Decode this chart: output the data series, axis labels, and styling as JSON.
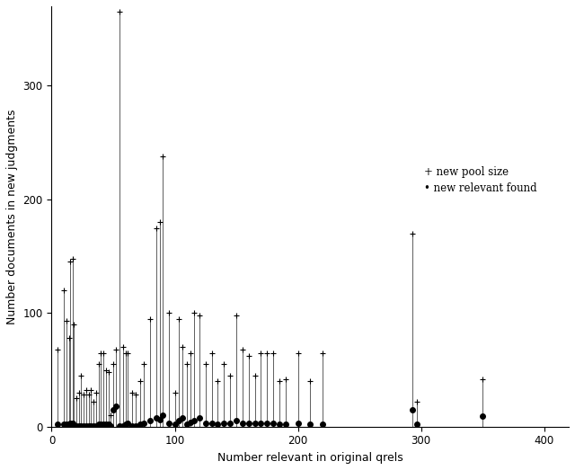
{
  "xlabel": "Number relevant in original qrels",
  "ylabel": "Number documents in new judgments",
  "xlim": [
    0,
    420
  ],
  "ylim": [
    0,
    370
  ],
  "xticks": [
    0,
    100,
    200,
    300,
    400
  ],
  "yticks": [
    0,
    100,
    200,
    300
  ],
  "background_color": "#ffffff",
  "legend_plus_label": "+ new pool size",
  "legend_dot_label": "• new relevant found",
  "points": [
    {
      "x": 5,
      "pool": 68,
      "rel": 2
    },
    {
      "x": 10,
      "pool": 120,
      "rel": 2
    },
    {
      "x": 12,
      "pool": 93,
      "rel": 2
    },
    {
      "x": 14,
      "pool": 78,
      "rel": 1
    },
    {
      "x": 15,
      "pool": 145,
      "rel": 3
    },
    {
      "x": 17,
      "pool": 148,
      "rel": 3
    },
    {
      "x": 18,
      "pool": 90,
      "rel": 1
    },
    {
      "x": 20,
      "pool": 25,
      "rel": 1
    },
    {
      "x": 22,
      "pool": 30,
      "rel": 1
    },
    {
      "x": 24,
      "pool": 45,
      "rel": 1
    },
    {
      "x": 26,
      "pool": 28,
      "rel": 1
    },
    {
      "x": 28,
      "pool": 32,
      "rel": 1
    },
    {
      "x": 30,
      "pool": 28,
      "rel": 1
    },
    {
      "x": 32,
      "pool": 32,
      "rel": 1
    },
    {
      "x": 34,
      "pool": 22,
      "rel": 1
    },
    {
      "x": 36,
      "pool": 30,
      "rel": 1
    },
    {
      "x": 38,
      "pool": 55,
      "rel": 2
    },
    {
      "x": 40,
      "pool": 65,
      "rel": 2
    },
    {
      "x": 42,
      "pool": 65,
      "rel": 2
    },
    {
      "x": 44,
      "pool": 50,
      "rel": 2
    },
    {
      "x": 46,
      "pool": 48,
      "rel": 2
    },
    {
      "x": 48,
      "pool": 10,
      "rel": 1
    },
    {
      "x": 50,
      "pool": 55,
      "rel": 15
    },
    {
      "x": 52,
      "pool": 68,
      "rel": 18
    },
    {
      "x": 55,
      "pool": 365,
      "rel": 1
    },
    {
      "x": 58,
      "pool": 70,
      "rel": 1
    },
    {
      "x": 60,
      "pool": 65,
      "rel": 2
    },
    {
      "x": 62,
      "pool": 65,
      "rel": 3
    },
    {
      "x": 65,
      "pool": 30,
      "rel": 1
    },
    {
      "x": 68,
      "pool": 28,
      "rel": 1
    },
    {
      "x": 72,
      "pool": 40,
      "rel": 2
    },
    {
      "x": 75,
      "pool": 55,
      "rel": 3
    },
    {
      "x": 80,
      "pool": 95,
      "rel": 5
    },
    {
      "x": 85,
      "pool": 175,
      "rel": 8
    },
    {
      "x": 88,
      "pool": 180,
      "rel": 6
    },
    {
      "x": 90,
      "pool": 238,
      "rel": 10
    },
    {
      "x": 95,
      "pool": 100,
      "rel": 3
    },
    {
      "x": 100,
      "pool": 30,
      "rel": 2
    },
    {
      "x": 103,
      "pool": 95,
      "rel": 5
    },
    {
      "x": 106,
      "pool": 70,
      "rel": 8
    },
    {
      "x": 110,
      "pool": 55,
      "rel": 2
    },
    {
      "x": 113,
      "pool": 65,
      "rel": 4
    },
    {
      "x": 116,
      "pool": 100,
      "rel": 5
    },
    {
      "x": 120,
      "pool": 98,
      "rel": 8
    },
    {
      "x": 125,
      "pool": 55,
      "rel": 3
    },
    {
      "x": 130,
      "pool": 65,
      "rel": 3
    },
    {
      "x": 135,
      "pool": 40,
      "rel": 2
    },
    {
      "x": 140,
      "pool": 55,
      "rel": 3
    },
    {
      "x": 145,
      "pool": 45,
      "rel": 3
    },
    {
      "x": 150,
      "pool": 98,
      "rel": 5
    },
    {
      "x": 155,
      "pool": 68,
      "rel": 3
    },
    {
      "x": 160,
      "pool": 62,
      "rel": 3
    },
    {
      "x": 165,
      "pool": 45,
      "rel": 3
    },
    {
      "x": 170,
      "pool": 65,
      "rel": 3
    },
    {
      "x": 175,
      "pool": 65,
      "rel": 3
    },
    {
      "x": 180,
      "pool": 65,
      "rel": 3
    },
    {
      "x": 185,
      "pool": 40,
      "rel": 2
    },
    {
      "x": 190,
      "pool": 42,
      "rel": 2
    },
    {
      "x": 200,
      "pool": 65,
      "rel": 3
    },
    {
      "x": 210,
      "pool": 40,
      "rel": 2
    },
    {
      "x": 220,
      "pool": 65,
      "rel": 2
    },
    {
      "x": 293,
      "pool": 170,
      "rel": 15
    },
    {
      "x": 297,
      "pool": 22,
      "rel": 2
    },
    {
      "x": 350,
      "pool": 42,
      "rel": 9
    }
  ]
}
